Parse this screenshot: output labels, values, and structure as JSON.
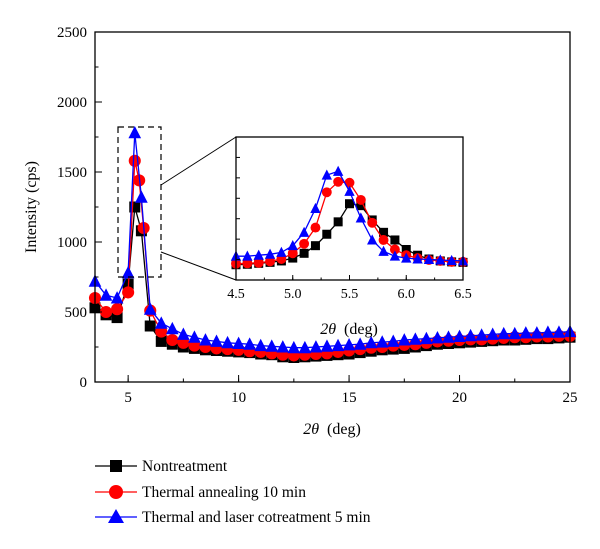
{
  "chart_data": [
    {
      "type": "line",
      "panel": "main",
      "xlabel_symbol": "2θ",
      "xlabel_unit": "(deg)",
      "ylabel": "Intensity (cps)",
      "xlim": [
        3.5,
        25
      ],
      "ylim": [
        0,
        2500
      ],
      "x_ticks": [
        5,
        10,
        15,
        20,
        25
      ],
      "y_ticks": [
        0,
        500,
        1000,
        1500,
        2000,
        2500
      ],
      "series": [
        {
          "name": "Nontreatment",
          "color": "#000000",
          "marker": "square",
          "x": [
            3.5,
            4.0,
            4.5,
            5.0,
            5.3,
            5.6,
            6.0,
            6.5,
            7,
            7.5,
            8,
            8.5,
            9,
            9.5,
            10,
            10.5,
            11,
            11.5,
            12,
            12.5,
            13,
            13.5,
            14,
            14.5,
            15,
            15.5,
            16,
            16.5,
            17,
            17.5,
            18,
            18.5,
            19,
            19.5,
            20,
            20.5,
            21,
            21.5,
            22,
            22.5,
            23,
            23.5,
            24,
            24.5,
            25
          ],
          "y": [
            530,
            480,
            460,
            700,
            1250,
            1080,
            400,
            290,
            270,
            250,
            240,
            230,
            225,
            220,
            215,
            210,
            200,
            195,
            180,
            175,
            180,
            185,
            190,
            195,
            200,
            210,
            220,
            230,
            235,
            240,
            250,
            260,
            270,
            275,
            280,
            285,
            290,
            295,
            300,
            300,
            305,
            310,
            310,
            315,
            320
          ]
        },
        {
          "name": "Thermal annealing 10 min",
          "color": "#ff0000",
          "marker": "circle",
          "x": [
            3.5,
            4.0,
            4.5,
            5.0,
            5.3,
            5.5,
            5.7,
            6.0,
            6.5,
            7,
            7.5,
            8,
            8.5,
            9,
            9.5,
            10,
            10.5,
            11,
            11.5,
            12,
            12.5,
            13,
            13.5,
            14,
            14.5,
            15,
            15.5,
            16,
            16.5,
            17,
            17.5,
            18,
            18.5,
            19,
            19.5,
            20,
            20.5,
            21,
            21.5,
            22,
            22.5,
            23,
            23.5,
            24,
            24.5,
            25
          ],
          "y": [
            600,
            500,
            520,
            640,
            1580,
            1440,
            1100,
            510,
            360,
            300,
            280,
            260,
            250,
            240,
            235,
            230,
            220,
            215,
            205,
            195,
            190,
            195,
            200,
            205,
            215,
            225,
            235,
            245,
            250,
            260,
            265,
            270,
            280,
            290,
            295,
            300,
            305,
            305,
            310,
            315,
            320,
            320,
            325,
            325,
            330,
            330
          ]
        },
        {
          "name": "Thermal and laser cotreatment 5 min",
          "color": "#0000ff",
          "marker": "triangle",
          "x": [
            3.5,
            4.0,
            4.5,
            5.0,
            5.3,
            5.6,
            6.0,
            6.5,
            7,
            7.5,
            8,
            8.5,
            9,
            9.5,
            10,
            10.5,
            11,
            11.5,
            12,
            12.5,
            13,
            13.5,
            14,
            14.5,
            15,
            15.5,
            16,
            16.5,
            17,
            17.5,
            18,
            18.5,
            19,
            19.5,
            20,
            20.5,
            21,
            21.5,
            22,
            22.5,
            23,
            23.5,
            24,
            24.5,
            25
          ],
          "y": [
            720,
            620,
            600,
            780,
            1780,
            1320,
            520,
            420,
            380,
            340,
            320,
            300,
            290,
            280,
            275,
            270,
            260,
            255,
            250,
            245,
            245,
            250,
            255,
            260,
            265,
            270,
            280,
            285,
            290,
            300,
            305,
            310,
            315,
            320,
            325,
            330,
            335,
            340,
            345,
            345,
            350,
            350,
            355,
            355,
            360
          ]
        }
      ]
    },
    {
      "type": "line",
      "panel": "inset",
      "xlabel_symbol": "2θ",
      "xlabel_unit": "(deg)",
      "xlim": [
        4.5,
        6.5
      ],
      "ylim": [
        400,
        1900
      ],
      "x_ticks": [
        4.5,
        5.0,
        5.5,
        6.0,
        6.5
      ],
      "x_tick_labels": [
        "4.5",
        "5.0",
        "5.5",
        "6.0",
        "6.5"
      ],
      "series": [
        {
          "name": "Nontreatment",
          "color": "#000000",
          "marker": "square",
          "x": [
            4.5,
            4.6,
            4.7,
            4.8,
            4.9,
            5.0,
            5.1,
            5.2,
            5.3,
            5.4,
            5.5,
            5.6,
            5.7,
            5.8,
            5.9,
            6.0,
            6.1,
            6.2,
            6.3,
            6.4,
            6.5
          ],
          "y": [
            560,
            565,
            575,
            585,
            600,
            630,
            680,
            760,
            880,
            1010,
            1200,
            1180,
            1030,
            900,
            820,
            720,
            660,
            620,
            600,
            590,
            585
          ]
        },
        {
          "name": "Thermal annealing 10 min",
          "color": "#ff0000",
          "marker": "circle",
          "x": [
            4.5,
            4.6,
            4.7,
            4.8,
            4.9,
            5.0,
            5.1,
            5.2,
            5.3,
            5.4,
            5.5,
            5.6,
            5.7,
            5.8,
            5.9,
            6.0,
            6.1,
            6.2,
            6.3,
            6.4,
            6.5
          ],
          "y": [
            570,
            575,
            580,
            595,
            620,
            680,
            780,
            950,
            1320,
            1430,
            1420,
            1240,
            1000,
            820,
            720,
            660,
            630,
            610,
            600,
            590,
            590
          ]
        },
        {
          "name": "Thermal and laser cotreatment 5 min",
          "color": "#0000ff",
          "marker": "triangle",
          "x": [
            4.5,
            4.6,
            4.7,
            4.8,
            4.9,
            5.0,
            5.1,
            5.2,
            5.3,
            5.4,
            5.5,
            5.6,
            5.7,
            5.8,
            5.9,
            6.0,
            6.1,
            6.2,
            6.3,
            6.4,
            6.5
          ],
          "y": [
            650,
            650,
            660,
            670,
            690,
            760,
            900,
            1150,
            1500,
            1540,
            1330,
            1050,
            820,
            700,
            650,
            630,
            620,
            615,
            610,
            605,
            600
          ]
        }
      ]
    }
  ],
  "legend": {
    "items": [
      {
        "label": "Nontreatment",
        "marker": "square",
        "color": "#000000"
      },
      {
        "label": "Thermal annealing 10 min",
        "marker": "circle",
        "color": "#ff0000"
      },
      {
        "label": "Thermal and laser cotreatment 5 min",
        "marker": "triangle",
        "color": "#0000ff"
      }
    ]
  }
}
